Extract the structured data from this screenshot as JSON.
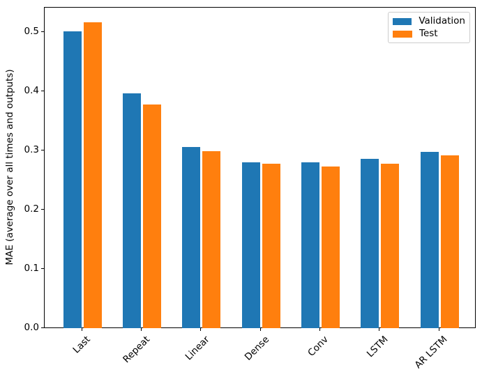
{
  "figure": {
    "background": "#ffffff",
    "text_color": "#000000",
    "spine_color": "#000000",
    "legend_border_color": "#cccccc"
  },
  "chart_data": {
    "type": "bar",
    "title": "",
    "xlabel": "",
    "ylabel": "MAE (average over all times and outputs)",
    "categories": [
      "Last",
      "Repeat",
      "Linear",
      "Dense",
      "Conv",
      "LSTM",
      "AR LSTM"
    ],
    "series": [
      {
        "name": "Validation",
        "color": "#1f77b4",
        "values": [
          0.501,
          0.396,
          0.306,
          0.28,
          0.28,
          0.286,
          0.298
        ]
      },
      {
        "name": "Test",
        "color": "#ff7f0e",
        "values": [
          0.516,
          0.377,
          0.299,
          0.277,
          0.273,
          0.277,
          0.291
        ]
      }
    ],
    "ylim": [
      0,
      0.542
    ],
    "ytick_values": [
      0.0,
      0.1,
      0.2,
      0.3,
      0.4,
      0.5
    ],
    "ytick_labels": [
      "0.0",
      "0.1",
      "0.2",
      "0.3",
      "0.4",
      "0.5"
    ],
    "xtick_rotation": 45,
    "grid": false,
    "legend": {
      "position": "upper right",
      "entries": [
        "Validation",
        "Test"
      ]
    }
  }
}
